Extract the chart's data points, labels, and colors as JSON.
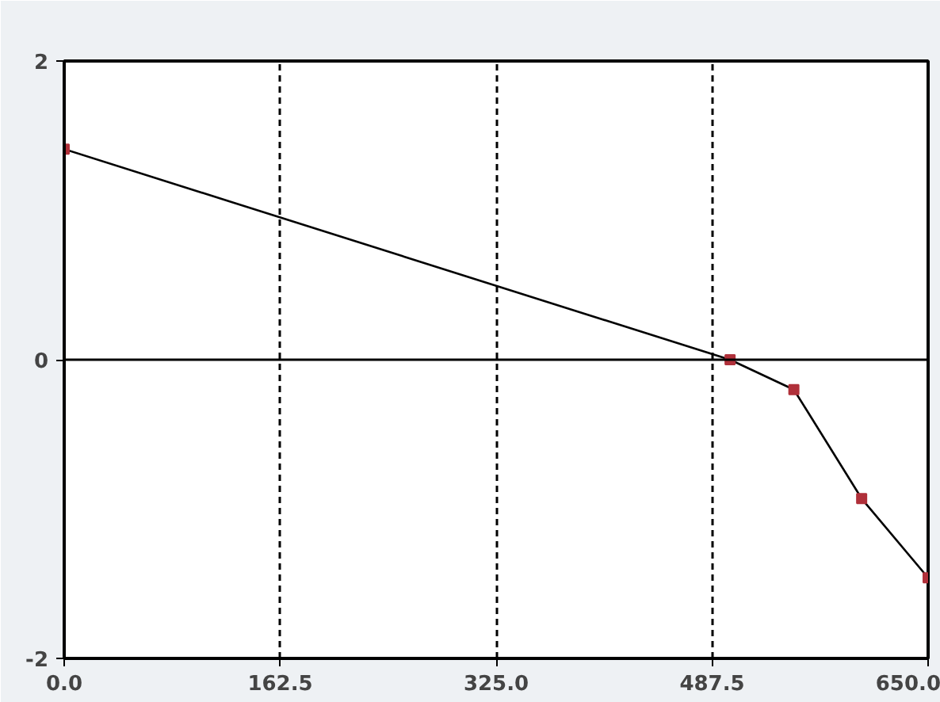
{
  "chart_data": {
    "type": "line",
    "x": [
      0,
      501,
      549,
      600,
      650
    ],
    "series": [
      {
        "color": "#000000",
        "values": [
          1.41,
          0,
          -0.2,
          -0.93,
          -1.46
        ]
      }
    ],
    "marker": "square",
    "xlim": [
      0,
      650
    ],
    "xticks": [
      {
        "value": 0,
        "label": "0.0"
      },
      {
        "value": 162.5,
        "label": "162.5"
      },
      {
        "value": 325,
        "label": "325.0"
      },
      {
        "value": 487.5,
        "label": "487.5"
      },
      {
        "value": 650,
        "label": "650.0"
      }
    ],
    "ylim": [
      -2,
      2
    ],
    "yticks": [
      -2,
      0,
      2
    ],
    "grid": "x",
    "ref_lines": [
      {
        "axis": "y",
        "value": 0,
        "label": null,
        "color": "#000000",
        "line_style": "solid"
      }
    ]
  }
}
